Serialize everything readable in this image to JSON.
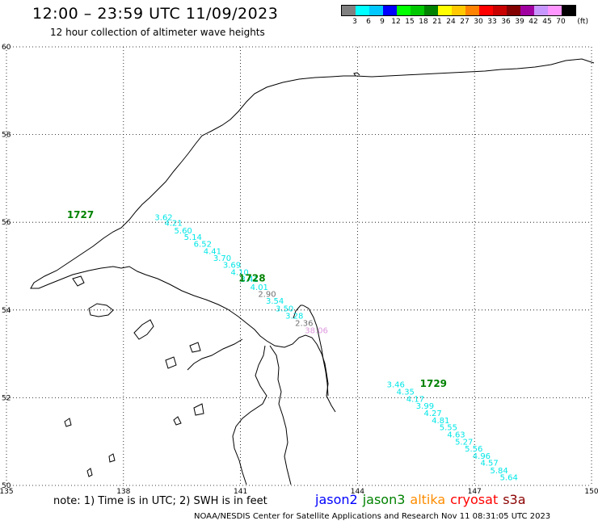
{
  "header": {
    "title": "12:00 – 23:59 UTC 11/09/2023",
    "subtitle": "12 hour collection of altimeter wave heights"
  },
  "colorbar": {
    "colors": [
      "#808080",
      "#00ffff",
      "#00c8ff",
      "#0000ff",
      "#00ff00",
      "#00c800",
      "#008200",
      "#ffff00",
      "#ffc800",
      "#ff8200",
      "#ff0000",
      "#c80000",
      "#820000",
      "#a000a0",
      "#c896ff",
      "#ff96ff",
      "#000000"
    ],
    "labels": [
      "3",
      "6",
      "9",
      "12",
      "15",
      "18",
      "21",
      "24",
      "27",
      "30",
      "33",
      "36",
      "39",
      "42",
      "45",
      "70"
    ],
    "unit": "(ft)"
  },
  "map": {
    "lon_range": [
      135,
      150
    ],
    "lat_range": [
      50,
      60
    ],
    "lon_ticks": [
      "135",
      "138",
      "141",
      "144",
      "147",
      "150"
    ],
    "lat_ticks": [
      "60",
      "58",
      "56",
      "54",
      "52",
      "50"
    ],
    "grid": "dotted",
    "colors": {
      "jason3": "#008200",
      "sat_cyan": "#00e6e6",
      "gray": "#707070",
      "pink": "#dc96dc"
    },
    "pass_labels": [
      {
        "text": "1727",
        "lon": 136.55,
        "lat": 56.1
      },
      {
        "text": "1728",
        "lon": 140.95,
        "lat": 54.65
      },
      {
        "text": "1729",
        "lon": 145.6,
        "lat": 52.25
      }
    ],
    "swh_values": [
      {
        "text": "3.62",
        "lon": 138.8,
        "lat": 56.05,
        "color": "sat_cyan"
      },
      {
        "text": "4.21",
        "lon": 139.05,
        "lat": 55.92,
        "color": "sat_cyan"
      },
      {
        "text": "5.60",
        "lon": 139.3,
        "lat": 55.75,
        "color": "sat_cyan"
      },
      {
        "text": "5.14",
        "lon": 139.55,
        "lat": 55.6,
        "color": "sat_cyan"
      },
      {
        "text": "6.52",
        "lon": 139.8,
        "lat": 55.44,
        "color": "sat_cyan"
      },
      {
        "text": "4.41",
        "lon": 140.05,
        "lat": 55.28,
        "color": "sat_cyan"
      },
      {
        "text": "3.70",
        "lon": 140.3,
        "lat": 55.12,
        "color": "sat_cyan"
      },
      {
        "text": "3.69",
        "lon": 140.55,
        "lat": 54.96,
        "color": "sat_cyan"
      },
      {
        "text": "4.10",
        "lon": 140.75,
        "lat": 54.8,
        "color": "sat_cyan"
      },
      {
        "text": "3.41",
        "lon": 141.0,
        "lat": 54.64,
        "color": "sat_cyan"
      },
      {
        "text": "4.01",
        "lon": 141.25,
        "lat": 54.46,
        "color": "sat_cyan"
      },
      {
        "text": "2.90",
        "lon": 141.45,
        "lat": 54.3,
        "color": "gray"
      },
      {
        "text": "3.54",
        "lon": 141.65,
        "lat": 54.14,
        "color": "sat_cyan"
      },
      {
        "text": "3.50",
        "lon": 141.9,
        "lat": 53.97,
        "color": "sat_cyan"
      },
      {
        "text": "3.28",
        "lon": 142.15,
        "lat": 53.8,
        "color": "sat_cyan"
      },
      {
        "text": "2.36",
        "lon": 142.4,
        "lat": 53.64,
        "color": "gray"
      },
      {
        "text": "38.06",
        "lon": 142.65,
        "lat": 53.47,
        "color": "pink"
      },
      {
        "text": "3.46",
        "lon": 144.75,
        "lat": 52.24,
        "color": "sat_cyan"
      },
      {
        "text": "4.35",
        "lon": 145.0,
        "lat": 52.07,
        "color": "sat_cyan"
      },
      {
        "text": "4.17",
        "lon": 145.25,
        "lat": 51.91,
        "color": "sat_cyan"
      },
      {
        "text": "3.99",
        "lon": 145.5,
        "lat": 51.75,
        "color": "sat_cyan"
      },
      {
        "text": "4.27",
        "lon": 145.7,
        "lat": 51.58,
        "color": "sat_cyan"
      },
      {
        "text": "4.81",
        "lon": 145.9,
        "lat": 51.42,
        "color": "sat_cyan"
      },
      {
        "text": "5.55",
        "lon": 146.1,
        "lat": 51.26,
        "color": "sat_cyan"
      },
      {
        "text": "4.63",
        "lon": 146.3,
        "lat": 51.1,
        "color": "sat_cyan"
      },
      {
        "text": "5.27",
        "lon": 146.5,
        "lat": 50.93,
        "color": "sat_cyan"
      },
      {
        "text": "5.56",
        "lon": 146.75,
        "lat": 50.77,
        "color": "sat_cyan"
      },
      {
        "text": "4.96",
        "lon": 146.95,
        "lat": 50.61,
        "color": "sat_cyan"
      },
      {
        "text": "4.57",
        "lon": 147.15,
        "lat": 50.45,
        "color": "sat_cyan"
      },
      {
        "text": "5.84",
        "lon": 147.4,
        "lat": 50.28,
        "color": "sat_cyan"
      },
      {
        "text": "5.64",
        "lon": 147.65,
        "lat": 50.12,
        "color": "sat_cyan"
      }
    ]
  },
  "footer": {
    "note": "note: 1) Time is in UTC; 2) SWH is in feet",
    "legend": [
      {
        "text": "jason2",
        "color": "#0000ff"
      },
      {
        "text": "jason3",
        "color": "#008200"
      },
      {
        "text": "altika",
        "color": "#ff8c00"
      },
      {
        "text": "cryosat",
        "color": "#ff0000"
      },
      {
        "text": "s3a",
        "color": "#8b0000"
      }
    ],
    "credit": "NOAA/NESDIS Center for Satellite Applications and Research   Nov 11 08:31:05 UTC 2023"
  }
}
